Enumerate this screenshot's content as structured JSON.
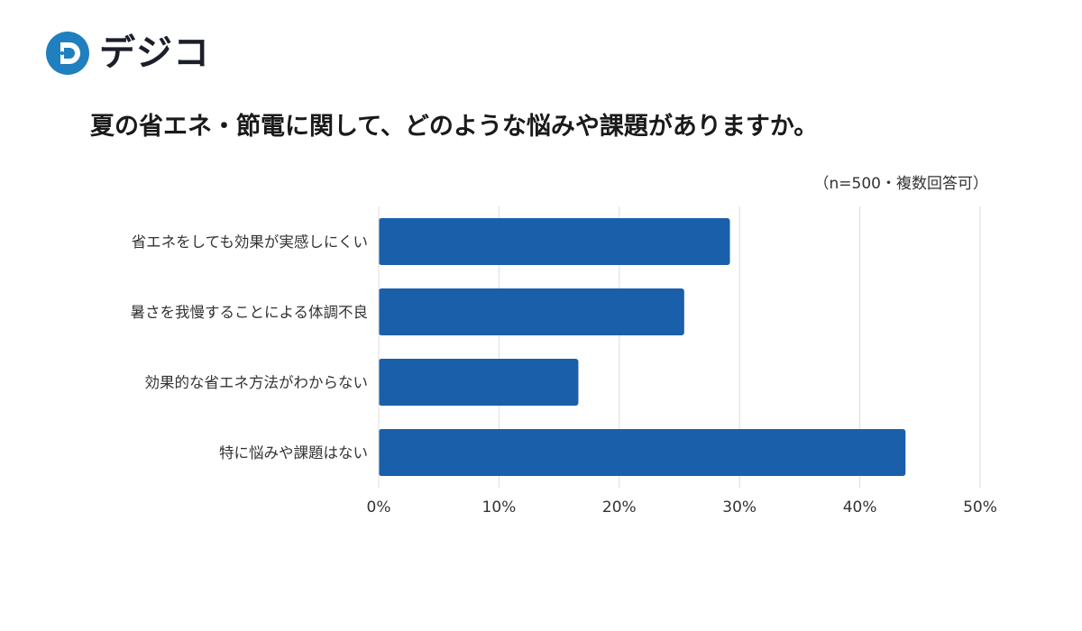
{
  "brand": {
    "name": "デジコ",
    "colors": {
      "primary": "#1f7fbf",
      "dot_teal": "#2bb3a3",
      "text": "#1b1f2a"
    }
  },
  "chart_data": {
    "type": "bar",
    "orientation": "horizontal",
    "title": "夏の省エネ・節電に関して、どのような悩みや課題がありますか。",
    "note": "（n=500・複数回答可）",
    "categories": [
      "省エネをしても効果が実感しにくい",
      "暑さを我慢することによる体調不良",
      "効果的な省エネ方法がわからない",
      "特に悩みや課題はない"
    ],
    "values": [
      29.2,
      25.4,
      16.6,
      43.8
    ],
    "xlim": [
      0,
      50
    ],
    "x_ticks": [
      "0%",
      "10%",
      "20%",
      "30%",
      "40%",
      "50%"
    ],
    "grid": true,
    "bar_color": "#1a5faa"
  }
}
